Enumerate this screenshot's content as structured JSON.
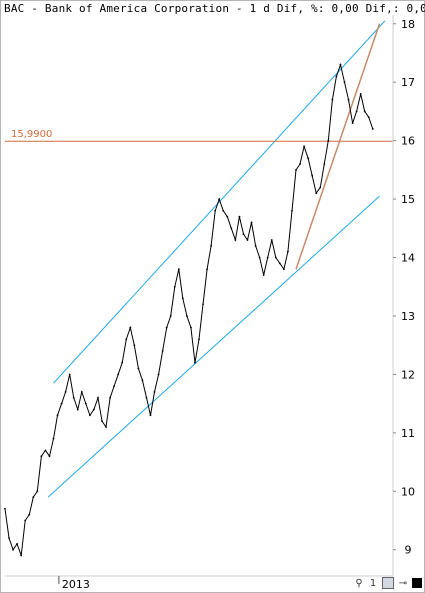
{
  "header": {
    "title": "BAC - Bank of America Corporation -  1 d Dif, %: 0,00 Dif,: 0,0"
  },
  "price_label": "15,9900",
  "footer": {
    "page_number": "1"
  },
  "colors": {
    "price_line": "#000000",
    "channel": "#1ea8e8",
    "reference_line": "#d2693a",
    "reference_text": "#d2693a",
    "trend": "#c88a6a",
    "axis_text": "#000000"
  },
  "chart_data": {
    "type": "line",
    "title": "BAC - Bank of America Corporation",
    "xlabel": "",
    "ylabel": "",
    "ylim": [
      8.55,
      18.15
    ],
    "x_tick_labels": [
      "2013"
    ],
    "y_ticks": [
      9,
      10,
      11,
      12,
      13,
      14,
      15,
      16,
      17,
      18
    ],
    "series": [
      {
        "name": "BAC",
        "points": [
          [
            0.0,
            9.7
          ],
          [
            1.5,
            9.2
          ],
          [
            3.0,
            9.0
          ],
          [
            4.5,
            9.1
          ],
          [
            6.0,
            8.9
          ],
          [
            7.5,
            9.5
          ],
          [
            9.0,
            9.6
          ],
          [
            10.5,
            9.9
          ],
          [
            12.0,
            10.0
          ],
          [
            13.5,
            10.6
          ],
          [
            15.0,
            10.7
          ],
          [
            16.5,
            10.6
          ],
          [
            18.0,
            10.9
          ],
          [
            19.5,
            11.3
          ],
          [
            21.0,
            11.5
          ],
          [
            22.5,
            11.7
          ],
          [
            24.0,
            12.0
          ],
          [
            25.5,
            11.6
          ],
          [
            27.0,
            11.4
          ],
          [
            28.5,
            11.7
          ],
          [
            30.0,
            11.5
          ],
          [
            31.5,
            11.3
          ],
          [
            33.0,
            11.4
          ],
          [
            34.5,
            11.6
          ],
          [
            36.0,
            11.2
          ],
          [
            37.5,
            11.1
          ],
          [
            39.0,
            11.6
          ],
          [
            40.5,
            11.8
          ],
          [
            42.0,
            12.0
          ],
          [
            43.5,
            12.2
          ],
          [
            45.0,
            12.6
          ],
          [
            46.5,
            12.8
          ],
          [
            48.0,
            12.5
          ],
          [
            49.5,
            12.1
          ],
          [
            51.0,
            11.9
          ],
          [
            52.5,
            11.6
          ],
          [
            54.0,
            11.3
          ],
          [
            55.5,
            11.7
          ],
          [
            57.0,
            12.0
          ],
          [
            58.5,
            12.4
          ],
          [
            60.0,
            12.8
          ],
          [
            61.5,
            13.0
          ],
          [
            63.0,
            13.5
          ],
          [
            64.5,
            13.8
          ],
          [
            66.0,
            13.3
          ],
          [
            67.5,
            13.0
          ],
          [
            69.0,
            12.8
          ],
          [
            70.5,
            12.2
          ],
          [
            72.0,
            12.6
          ],
          [
            73.5,
            13.2
          ],
          [
            75.0,
            13.8
          ],
          [
            76.5,
            14.2
          ],
          [
            78.0,
            14.8
          ],
          [
            79.5,
            15.0
          ],
          [
            81.0,
            14.8
          ],
          [
            82.5,
            14.7
          ],
          [
            84.0,
            14.5
          ],
          [
            85.5,
            14.3
          ],
          [
            87.0,
            14.7
          ],
          [
            88.5,
            14.4
          ],
          [
            90.0,
            14.3
          ],
          [
            91.5,
            14.6
          ],
          [
            93.0,
            14.2
          ],
          [
            94.5,
            14.0
          ],
          [
            96.0,
            13.7
          ],
          [
            97.5,
            14.0
          ],
          [
            99.0,
            14.3
          ],
          [
            100.5,
            14.0
          ],
          [
            102.0,
            13.9
          ],
          [
            103.5,
            13.8
          ],
          [
            105.0,
            14.1
          ],
          [
            106.5,
            14.8
          ],
          [
            108.0,
            15.5
          ],
          [
            109.5,
            15.6
          ],
          [
            111.0,
            15.9
          ],
          [
            112.5,
            15.7
          ],
          [
            114.0,
            15.4
          ],
          [
            115.5,
            15.1
          ],
          [
            117.0,
            15.2
          ],
          [
            118.5,
            15.6
          ],
          [
            120.0,
            16.0
          ],
          [
            121.5,
            16.7
          ],
          [
            123.0,
            17.1
          ],
          [
            124.5,
            17.3
          ],
          [
            126.0,
            17.0
          ],
          [
            127.5,
            16.7
          ],
          [
            129.0,
            16.3
          ],
          [
            130.5,
            16.5
          ],
          [
            132.0,
            16.8
          ],
          [
            133.5,
            16.5
          ],
          [
            135.0,
            16.4
          ],
          [
            136.5,
            16.2
          ]
        ]
      }
    ],
    "annotations": [
      {
        "type": "horizontal_line",
        "y": 15.99,
        "label": "15,9900"
      },
      {
        "type": "channel_line",
        "name": "upper",
        "from": [
          18.0,
          11.85
        ],
        "to": [
          141.0,
          18.05
        ]
      },
      {
        "type": "channel_line",
        "name": "lower",
        "from": [
          16.0,
          9.9
        ],
        "to": [
          139.0,
          15.05
        ]
      },
      {
        "type": "trend_line",
        "from": [
          108.0,
          13.8
        ],
        "to": [
          139.0,
          18.0
        ]
      }
    ],
    "xlim": [
      0,
      144
    ],
    "x_tick_positions": [
      20
    ],
    "grid": false,
    "legend": "none"
  }
}
